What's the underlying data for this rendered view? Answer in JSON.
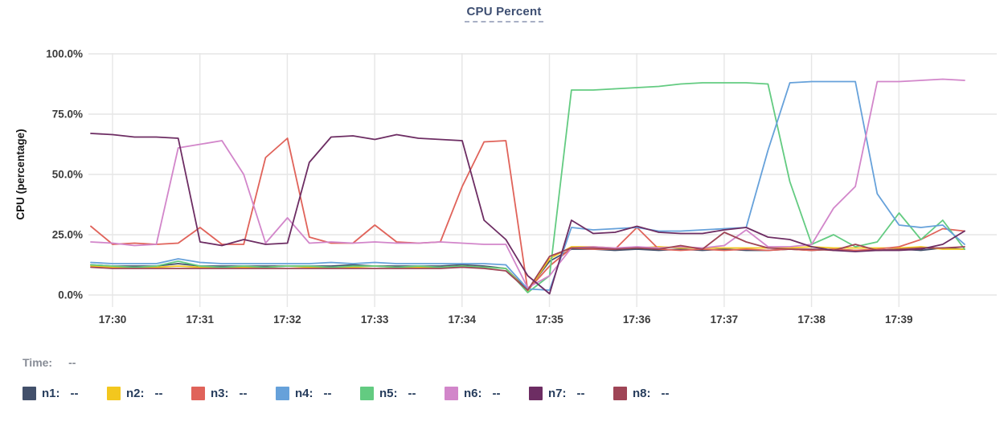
{
  "header": {
    "title": "CPU Percent"
  },
  "tooltip": {
    "time_label": "Time:",
    "time_value": "--"
  },
  "axes": {
    "y_label": "CPU (percentage)",
    "y_ticks": [
      "100.0%",
      "75.0%",
      "50.0%",
      "25.0%",
      "0.0%"
    ],
    "x_ticks": [
      "17:30",
      "17:31",
      "17:32",
      "17:33",
      "17:34",
      "17:35",
      "17:36",
      "17:37",
      "17:38",
      "17:39"
    ]
  },
  "chart_data": {
    "type": "line",
    "title": "CPU Percent",
    "ylabel": "CPU (percentage)",
    "ylim": [
      0,
      100
    ],
    "y_tick_values": [
      100,
      75,
      50,
      25,
      0
    ],
    "y_tick_labels": [
      "100.0%",
      "75.0%",
      "50.0%",
      "25.0%",
      "0.0%"
    ],
    "x_tick_labels": [
      "17:30",
      "17:31",
      "17:32",
      "17:33",
      "17:34",
      "17:35",
      "17:36",
      "17:37",
      "17:38",
      "17:39"
    ],
    "grid": true,
    "legend_position": "bottom",
    "x_start": "17:29:45",
    "x_end": "17:39:45",
    "sample_interval_seconds": 15,
    "series": [
      {
        "name": "n1",
        "color": "#42506b",
        "legend_value": "--",
        "values": [
          12.5,
          12,
          12,
          12,
          13,
          12,
          12,
          12,
          12,
          12,
          12,
          12,
          12.5,
          12,
          12,
          12,
          12,
          12.5,
          12,
          11,
          2,
          14,
          19,
          19,
          18.5,
          19,
          18.5,
          19,
          18.5,
          19,
          18.5,
          18.5,
          19,
          18.5,
          19,
          18.5,
          18.5,
          19,
          18.5,
          19.5,
          19
        ]
      },
      {
        "name": "n2",
        "color": "#f3c71e",
        "legend_value": "--",
        "values": [
          12,
          11.5,
          11.5,
          11.5,
          12,
          11.5,
          11.5,
          11.5,
          11.5,
          12,
          11.5,
          11.5,
          11.5,
          12,
          11.5,
          11.5,
          11.5,
          12,
          11.5,
          11,
          1.5,
          15,
          20,
          20,
          19.5,
          19.5,
          20,
          19.5,
          19.5,
          19.5,
          19.5,
          19.5,
          19.5,
          20,
          19.5,
          19.5,
          19.5,
          19.5,
          20,
          19,
          19
        ]
      },
      {
        "name": "n3",
        "color": "#e0635a",
        "legend_value": "--",
        "values": [
          28.5,
          21,
          21.5,
          21,
          21.5,
          28,
          21,
          21,
          57,
          65,
          24,
          21.5,
          21.5,
          29,
          22,
          21.5,
          22,
          45,
          63.5,
          64,
          2,
          12,
          19.5,
          19,
          19,
          28,
          19,
          18.5,
          19,
          18.5,
          19,
          18.5,
          19,
          18.5,
          19,
          18.5,
          19,
          20,
          23,
          27.5,
          26.5
        ]
      },
      {
        "name": "n4",
        "color": "#66a1da",
        "legend_value": "--",
        "values": [
          13.5,
          13,
          13,
          13,
          15,
          13.5,
          13,
          13,
          13,
          13,
          13,
          13.5,
          13,
          13.5,
          13,
          13,
          13,
          13,
          13,
          12.5,
          2.5,
          2,
          28,
          27,
          27.5,
          28,
          26.5,
          26.5,
          27,
          27.5,
          28,
          60,
          88,
          88.5,
          88.5,
          88.5,
          42,
          29,
          28,
          29,
          21
        ]
      },
      {
        "name": "n5",
        "color": "#63cb81",
        "legend_value": "--",
        "values": [
          12.5,
          12,
          11.5,
          12,
          14,
          12,
          11.5,
          12,
          11.5,
          12,
          12,
          11.5,
          12,
          12,
          11.5,
          12,
          11.5,
          12,
          11.5,
          11,
          1,
          8,
          85,
          85,
          85.5,
          86,
          86.5,
          87.5,
          88,
          88,
          88,
          87.5,
          47,
          21,
          25,
          20,
          22,
          34,
          23,
          31,
          19
        ]
      },
      {
        "name": "n6",
        "color": "#d286ca",
        "legend_value": "--",
        "values": [
          22,
          21.5,
          20.5,
          21,
          61,
          62.5,
          64,
          50,
          21.5,
          32,
          21.5,
          22,
          21.5,
          22,
          21.5,
          21.5,
          22,
          21.5,
          21,
          21,
          3,
          8,
          19.5,
          20,
          19.5,
          20,
          19.5,
          20,
          19.5,
          20.5,
          27,
          20,
          20,
          21,
          36,
          45,
          88.5,
          88.5,
          89,
          89.5,
          89
        ]
      },
      {
        "name": "n7",
        "color": "#6d2d63",
        "legend_value": "--",
        "values": [
          67,
          66.5,
          65.5,
          65.5,
          65,
          22,
          20.5,
          23,
          21,
          21.5,
          55,
          65.5,
          66,
          64.5,
          66.5,
          65,
          64.5,
          64,
          31,
          23,
          8,
          0.5,
          31,
          25.5,
          26,
          28.5,
          26,
          25.5,
          25.5,
          27,
          28,
          24,
          23,
          20,
          18.5,
          18,
          18.5,
          18.5,
          19,
          21,
          26.5
        ]
      },
      {
        "name": "n8",
        "color": "#9f4556",
        "legend_value": "--",
        "values": [
          11.5,
          11,
          11,
          11,
          11,
          11,
          11,
          11,
          11,
          11,
          11,
          11,
          11,
          11,
          11,
          11,
          11,
          11.5,
          11,
          10,
          2,
          16,
          19.5,
          19.5,
          19,
          19.5,
          19,
          20.5,
          19,
          26,
          22,
          19.5,
          19,
          19,
          18.5,
          21,
          18.5,
          19,
          19.5,
          19.5,
          20
        ]
      }
    ]
  }
}
